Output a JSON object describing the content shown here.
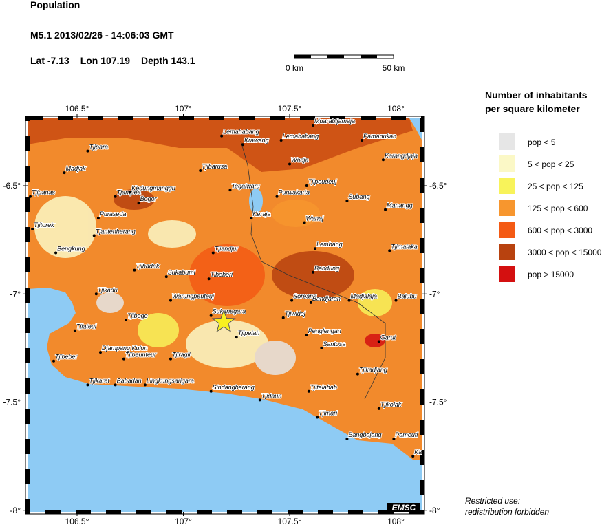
{
  "header": {
    "title": "Population",
    "event": "M5.1  2013/02/26 - 14:06:03 GMT",
    "lat": {
      "label": "Lat",
      "value": -7.13
    },
    "lon": {
      "label": "Lon",
      "value": 107.19
    },
    "depth": {
      "label": "Depth",
      "value": 143.1
    },
    "scale": {
      "start": "0 km",
      "end": "50 km"
    }
  },
  "map": {
    "lon_ticks": [
      {
        "value": 106.5,
        "label": "106.5°"
      },
      {
        "value": 107,
        "label": "107°"
      },
      {
        "value": 107.5,
        "label": "107.5°"
      },
      {
        "value": 108,
        "label": "108°"
      }
    ],
    "lat_ticks": [
      {
        "value": -6.5,
        "label": "-6.5°"
      },
      {
        "value": -7,
        "label": "-7°"
      },
      {
        "value": -7.5,
        "label": "-7.5°"
      },
      {
        "value": -8,
        "label": "-8°"
      }
    ],
    "cities": [
      {
        "name": "Muarabljamaja",
        "lon": 107.61,
        "lat": -6.22
      },
      {
        "name": "Lemahabang",
        "lon": 107.18,
        "lat": -6.27
      },
      {
        "name": "Pamanukan",
        "lon": 107.84,
        "lat": -6.29
      },
      {
        "name": "Krawang",
        "lon": 107.28,
        "lat": -6.31
      },
      {
        "name": "Lemahabang",
        "lon": 107.46,
        "lat": -6.29
      },
      {
        "name": "Tjipara",
        "lon": 106.55,
        "lat": -6.34
      },
      {
        "name": "Karangdjaja",
        "lon": 107.94,
        "lat": -6.38
      },
      {
        "name": "Wadja",
        "lon": 107.5,
        "lat": -6.4
      },
      {
        "name": "Madjak",
        "lon": 106.44,
        "lat": -6.44
      },
      {
        "name": "Tjibarusa",
        "lon": 107.08,
        "lat": -6.43
      },
      {
        "name": "Tegalwaru",
        "lon": 107.22,
        "lat": -6.52
      },
      {
        "name": "Tjipeudeuj",
        "lon": 107.58,
        "lat": -6.5
      },
      {
        "name": "Tjipanas",
        "lon": 106.28,
        "lat": -6.55
      },
      {
        "name": "Tjampea",
        "lon": 106.68,
        "lat": -6.55
      },
      {
        "name": "Kedungmanggu",
        "lon": 106.75,
        "lat": -6.53
      },
      {
        "name": "Bogor",
        "lon": 106.79,
        "lat": -6.58
      },
      {
        "name": "Purwakarta",
        "lon": 107.44,
        "lat": -6.55
      },
      {
        "name": "Subang",
        "lon": 107.77,
        "lat": -6.57
      },
      {
        "name": "Manangg",
        "lon": 107.95,
        "lat": -6.61
      },
      {
        "name": "Puraseda",
        "lon": 106.6,
        "lat": -6.65
      },
      {
        "name": "Keraja",
        "lon": 107.32,
        "lat": -6.65
      },
      {
        "name": "Wanaj",
        "lon": 107.57,
        "lat": -6.67
      },
      {
        "name": "Tjitorek",
        "lon": 106.29,
        "lat": -6.7
      },
      {
        "name": "Tjantenherang",
        "lon": 106.58,
        "lat": -6.73
      },
      {
        "name": "Bengkung",
        "lon": 106.4,
        "lat": -6.81
      },
      {
        "name": "Tjiandjur",
        "lon": 107.14,
        "lat": -6.81
      },
      {
        "name": "Lembang",
        "lon": 107.62,
        "lat": -6.79
      },
      {
        "name": "Tjimalaka",
        "lon": 107.97,
        "lat": -6.8
      },
      {
        "name": "Tjihadak",
        "lon": 106.77,
        "lat": -6.89
      },
      {
        "name": "Sukabumi",
        "lon": 106.92,
        "lat": -6.92
      },
      {
        "name": "Tibeberi",
        "lon": 107.12,
        "lat": -6.93
      },
      {
        "name": "Bandung",
        "lon": 107.61,
        "lat": -6.9
      },
      {
        "name": "Tjikadu",
        "lon": 106.59,
        "lat": -7.0
      },
      {
        "name": "Warungpeuteuj",
        "lon": 106.94,
        "lat": -7.03
      },
      {
        "name": "Soreang",
        "lon": 107.51,
        "lat": -7.03
      },
      {
        "name": "Bandjaran",
        "lon": 107.6,
        "lat": -7.04
      },
      {
        "name": "Madjalaja",
        "lon": 107.78,
        "lat": -7.03
      },
      {
        "name": "Balubu",
        "lon": 108.0,
        "lat": -7.03
      },
      {
        "name": "Sukanegara",
        "lon": 107.13,
        "lat": -7.1
      },
      {
        "name": "Tjiwidej",
        "lon": 107.47,
        "lat": -7.11
      },
      {
        "name": "Tjiateul",
        "lon": 106.49,
        "lat": -7.17
      },
      {
        "name": "Tjibogo",
        "lon": 106.73,
        "lat": -7.12
      },
      {
        "name": "Tjipelah",
        "lon": 107.25,
        "lat": -7.2
      },
      {
        "name": "Penglengan",
        "lon": 107.58,
        "lat": -7.19
      },
      {
        "name": "Santosa",
        "lon": 107.65,
        "lat": -7.25
      },
      {
        "name": "Garut",
        "lon": 107.92,
        "lat": -7.22
      },
      {
        "name": "Djampang Kulon",
        "lon": 106.61,
        "lat": -7.27
      },
      {
        "name": "Tjibeber",
        "lon": 106.39,
        "lat": -7.31
      },
      {
        "name": "Tjibeunteur",
        "lon": 106.72,
        "lat": -7.3
      },
      {
        "name": "Tjiragil",
        "lon": 106.94,
        "lat": -7.3
      },
      {
        "name": "Tjikadjang",
        "lon": 107.82,
        "lat": -7.37
      },
      {
        "name": "Tjikaret",
        "lon": 106.55,
        "lat": -7.42
      },
      {
        "name": "Babadan",
        "lon": 106.68,
        "lat": -7.42
      },
      {
        "name": "Lingkungsarigara",
        "lon": 106.82,
        "lat": -7.42
      },
      {
        "name": "Sindangbarang",
        "lon": 107.13,
        "lat": -7.45
      },
      {
        "name": "Tjidaun",
        "lon": 107.36,
        "lat": -7.49
      },
      {
        "name": "Tjitalahab",
        "lon": 107.59,
        "lat": -7.45
      },
      {
        "name": "Tjikolak",
        "lon": 107.92,
        "lat": -7.53
      },
      {
        "name": "Tjimari",
        "lon": 107.63,
        "lat": -7.57
      },
      {
        "name": "Bangbajang",
        "lon": 107.77,
        "lat": -7.67
      },
      {
        "name": "Pameuti",
        "lon": 107.99,
        "lat": -7.67
      },
      {
        "name": "Ka",
        "lon": 108.08,
        "lat": -7.75
      }
    ],
    "logo": "EMSC"
  },
  "legend": {
    "title": [
      "Number of inhabitants",
      "per square kilometer"
    ],
    "entries": [
      {
        "label": "pop < 5",
        "color": "#e6e6e6"
      },
      {
        "label": "5 < pop < 25",
        "color": "#fbf8c6"
      },
      {
        "label": "25 < pop < 125",
        "color": "#f8f35a"
      },
      {
        "label": "125 < pop < 600",
        "color": "#f7962e"
      },
      {
        "label": "600 < pop < 3000",
        "color": "#f45a14"
      },
      {
        "label": "3000 < pop < 15000",
        "color": "#b8420f"
      },
      {
        "label": "pop > 15000",
        "color": "#d41010"
      }
    ]
  },
  "footer": [
    "Restricted use:",
    "redistribution forbidden"
  ]
}
